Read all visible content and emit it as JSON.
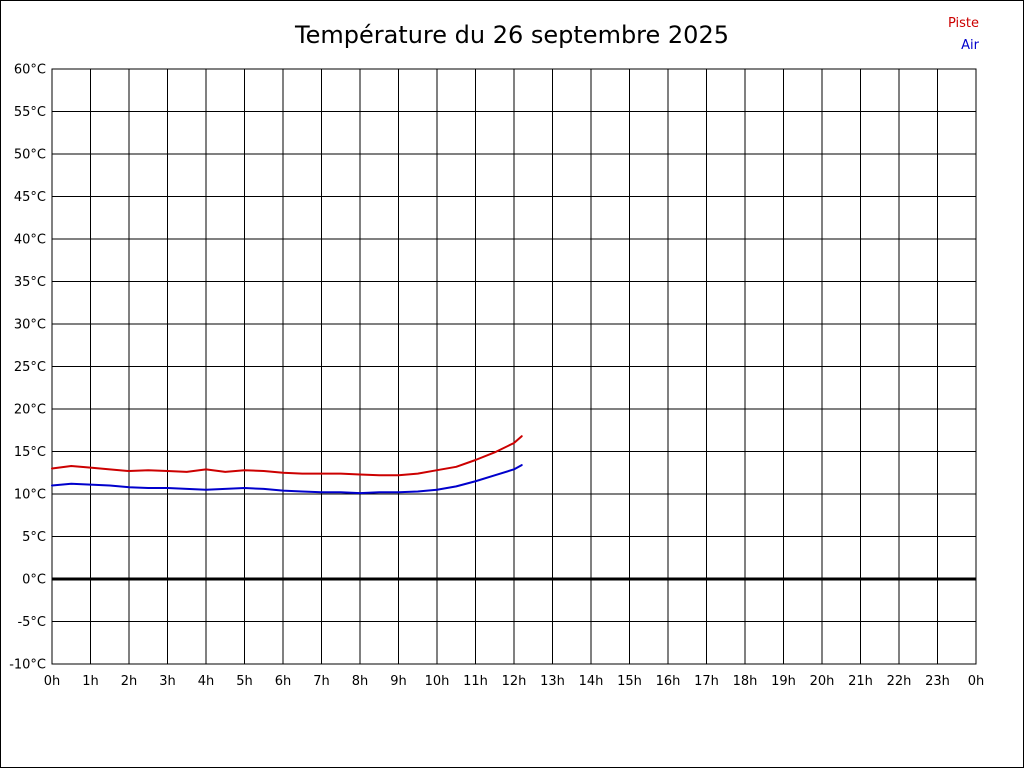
{
  "page": {
    "background": "#ffffff",
    "border_color": "#000000"
  },
  "chart_data": {
    "type": "line",
    "title": "Température du 26 septembre 2025",
    "xlabel": "",
    "ylabel": "",
    "xlim": [
      0,
      24
    ],
    "ylim": [
      -10,
      60
    ],
    "grid": true,
    "grid_color": "#000000",
    "zero_line": 0,
    "legend_position": "top-right",
    "legend": [
      {
        "label": "Piste",
        "color": "#cc0000"
      },
      {
        "label": "Air",
        "color": "#0000cc"
      }
    ],
    "y_ticks": [
      {
        "value": 60,
        "label": "60°C"
      },
      {
        "value": 55,
        "label": "55°C"
      },
      {
        "value": 50,
        "label": "50°C"
      },
      {
        "value": 45,
        "label": "45°C"
      },
      {
        "value": 40,
        "label": "40°C"
      },
      {
        "value": 35,
        "label": "35°C"
      },
      {
        "value": 30,
        "label": "30°C"
      },
      {
        "value": 25,
        "label": "25°C"
      },
      {
        "value": 20,
        "label": "20°C"
      },
      {
        "value": 15,
        "label": "15°C"
      },
      {
        "value": 10,
        "label": "10°C"
      },
      {
        "value": 5,
        "label": "5°C"
      },
      {
        "value": 0,
        "label": "0°C"
      },
      {
        "value": -5,
        "label": "-5°C"
      },
      {
        "value": -10,
        "label": "-10°C"
      }
    ],
    "x_ticks": [
      {
        "hour": 0,
        "label": "0h"
      },
      {
        "hour": 1,
        "label": "1h"
      },
      {
        "hour": 2,
        "label": "2h"
      },
      {
        "hour": 3,
        "label": "3h"
      },
      {
        "hour": 4,
        "label": "4h"
      },
      {
        "hour": 5,
        "label": "5h"
      },
      {
        "hour": 6,
        "label": "6h"
      },
      {
        "hour": 7,
        "label": "7h"
      },
      {
        "hour": 8,
        "label": "8h"
      },
      {
        "hour": 9,
        "label": "9h"
      },
      {
        "hour": 10,
        "label": "10h"
      },
      {
        "hour": 11,
        "label": "11h"
      },
      {
        "hour": 12,
        "label": "12h"
      },
      {
        "hour": 13,
        "label": "13h"
      },
      {
        "hour": 14,
        "label": "14h"
      },
      {
        "hour": 15,
        "label": "15h"
      },
      {
        "hour": 16,
        "label": "16h"
      },
      {
        "hour": 17,
        "label": "17h"
      },
      {
        "hour": 18,
        "label": "18h"
      },
      {
        "hour": 19,
        "label": "19h"
      },
      {
        "hour": 20,
        "label": "20h"
      },
      {
        "hour": 21,
        "label": "21h"
      },
      {
        "hour": 22,
        "label": "22h"
      },
      {
        "hour": 23,
        "label": "23h"
      },
      {
        "hour": 24,
        "label": "0h"
      }
    ],
    "series": [
      {
        "name": "Piste",
        "color": "#cc0000",
        "x": [
          0,
          0.5,
          1,
          1.5,
          2,
          2.5,
          3,
          3.5,
          4,
          4.5,
          5,
          5.5,
          6,
          6.5,
          7,
          7.5,
          8,
          8.5,
          9,
          9.5,
          10,
          10.5,
          11,
          11.5,
          12,
          12.2
        ],
        "values": [
          13.0,
          13.3,
          13.1,
          12.9,
          12.7,
          12.8,
          12.7,
          12.6,
          12.9,
          12.6,
          12.8,
          12.7,
          12.5,
          12.4,
          12.4,
          12.4,
          12.3,
          12.2,
          12.2,
          12.4,
          12.8,
          13.2,
          14.0,
          14.9,
          16.0,
          16.8
        ]
      },
      {
        "name": "Air",
        "color": "#0000cc",
        "x": [
          0,
          0.5,
          1,
          1.5,
          2,
          2.5,
          3,
          3.5,
          4,
          4.5,
          5,
          5.5,
          6,
          6.5,
          7,
          7.5,
          8,
          8.5,
          9,
          9.5,
          10,
          10.5,
          11,
          11.5,
          12,
          12.2
        ],
        "values": [
          11.0,
          11.2,
          11.1,
          11.0,
          10.8,
          10.7,
          10.7,
          10.6,
          10.5,
          10.6,
          10.7,
          10.6,
          10.4,
          10.3,
          10.2,
          10.2,
          10.1,
          10.2,
          10.2,
          10.3,
          10.5,
          10.9,
          11.5,
          12.2,
          12.9,
          13.4
        ]
      }
    ]
  }
}
